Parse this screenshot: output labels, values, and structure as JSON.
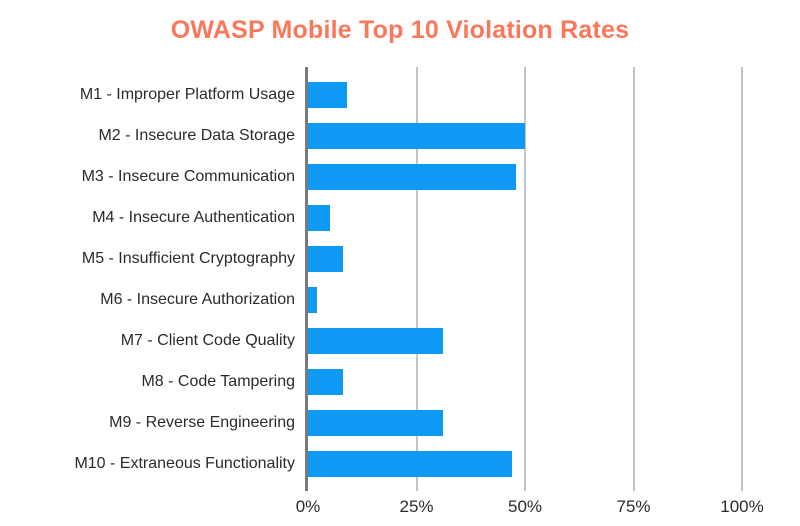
{
  "colors": {
    "bar": "#0D99F4",
    "title": "#F9785B",
    "grid": "#C4C4C4",
    "zero_axis": "#7A7A7A",
    "label_text": "#2B2B2B",
    "tick_text": "#2B2B2B",
    "background": "#FFFFFF"
  },
  "chart_data": {
    "type": "bar",
    "orientation": "horizontal",
    "title": "OWASP Mobile Top 10 Violation Rates",
    "categories": [
      "M1 - Improper Platform Usage",
      "M2 - Insecure Data Storage",
      "M3 - Insecure Communication",
      "M4 - Insecure Authentication",
      "M5 - Insufficient Cryptography",
      "M6 - Insecure Authorization",
      "M7 - Client Code Quality",
      "M8 - Code Tampering",
      "M9 - Reverse Engineering",
      "M10 - Extraneous Functionality"
    ],
    "values": [
      9,
      50,
      48,
      5,
      8,
      2,
      31,
      8,
      31,
      47
    ],
    "unit": "%",
    "xlabel": "",
    "ylabel": "",
    "xlim": [
      0,
      100
    ],
    "x_ticks": [
      "0%",
      "25%",
      "50%",
      "75%",
      "100%"
    ],
    "x_tick_values": [
      0,
      25,
      50,
      75,
      100
    ],
    "grid": true,
    "legend": false
  }
}
